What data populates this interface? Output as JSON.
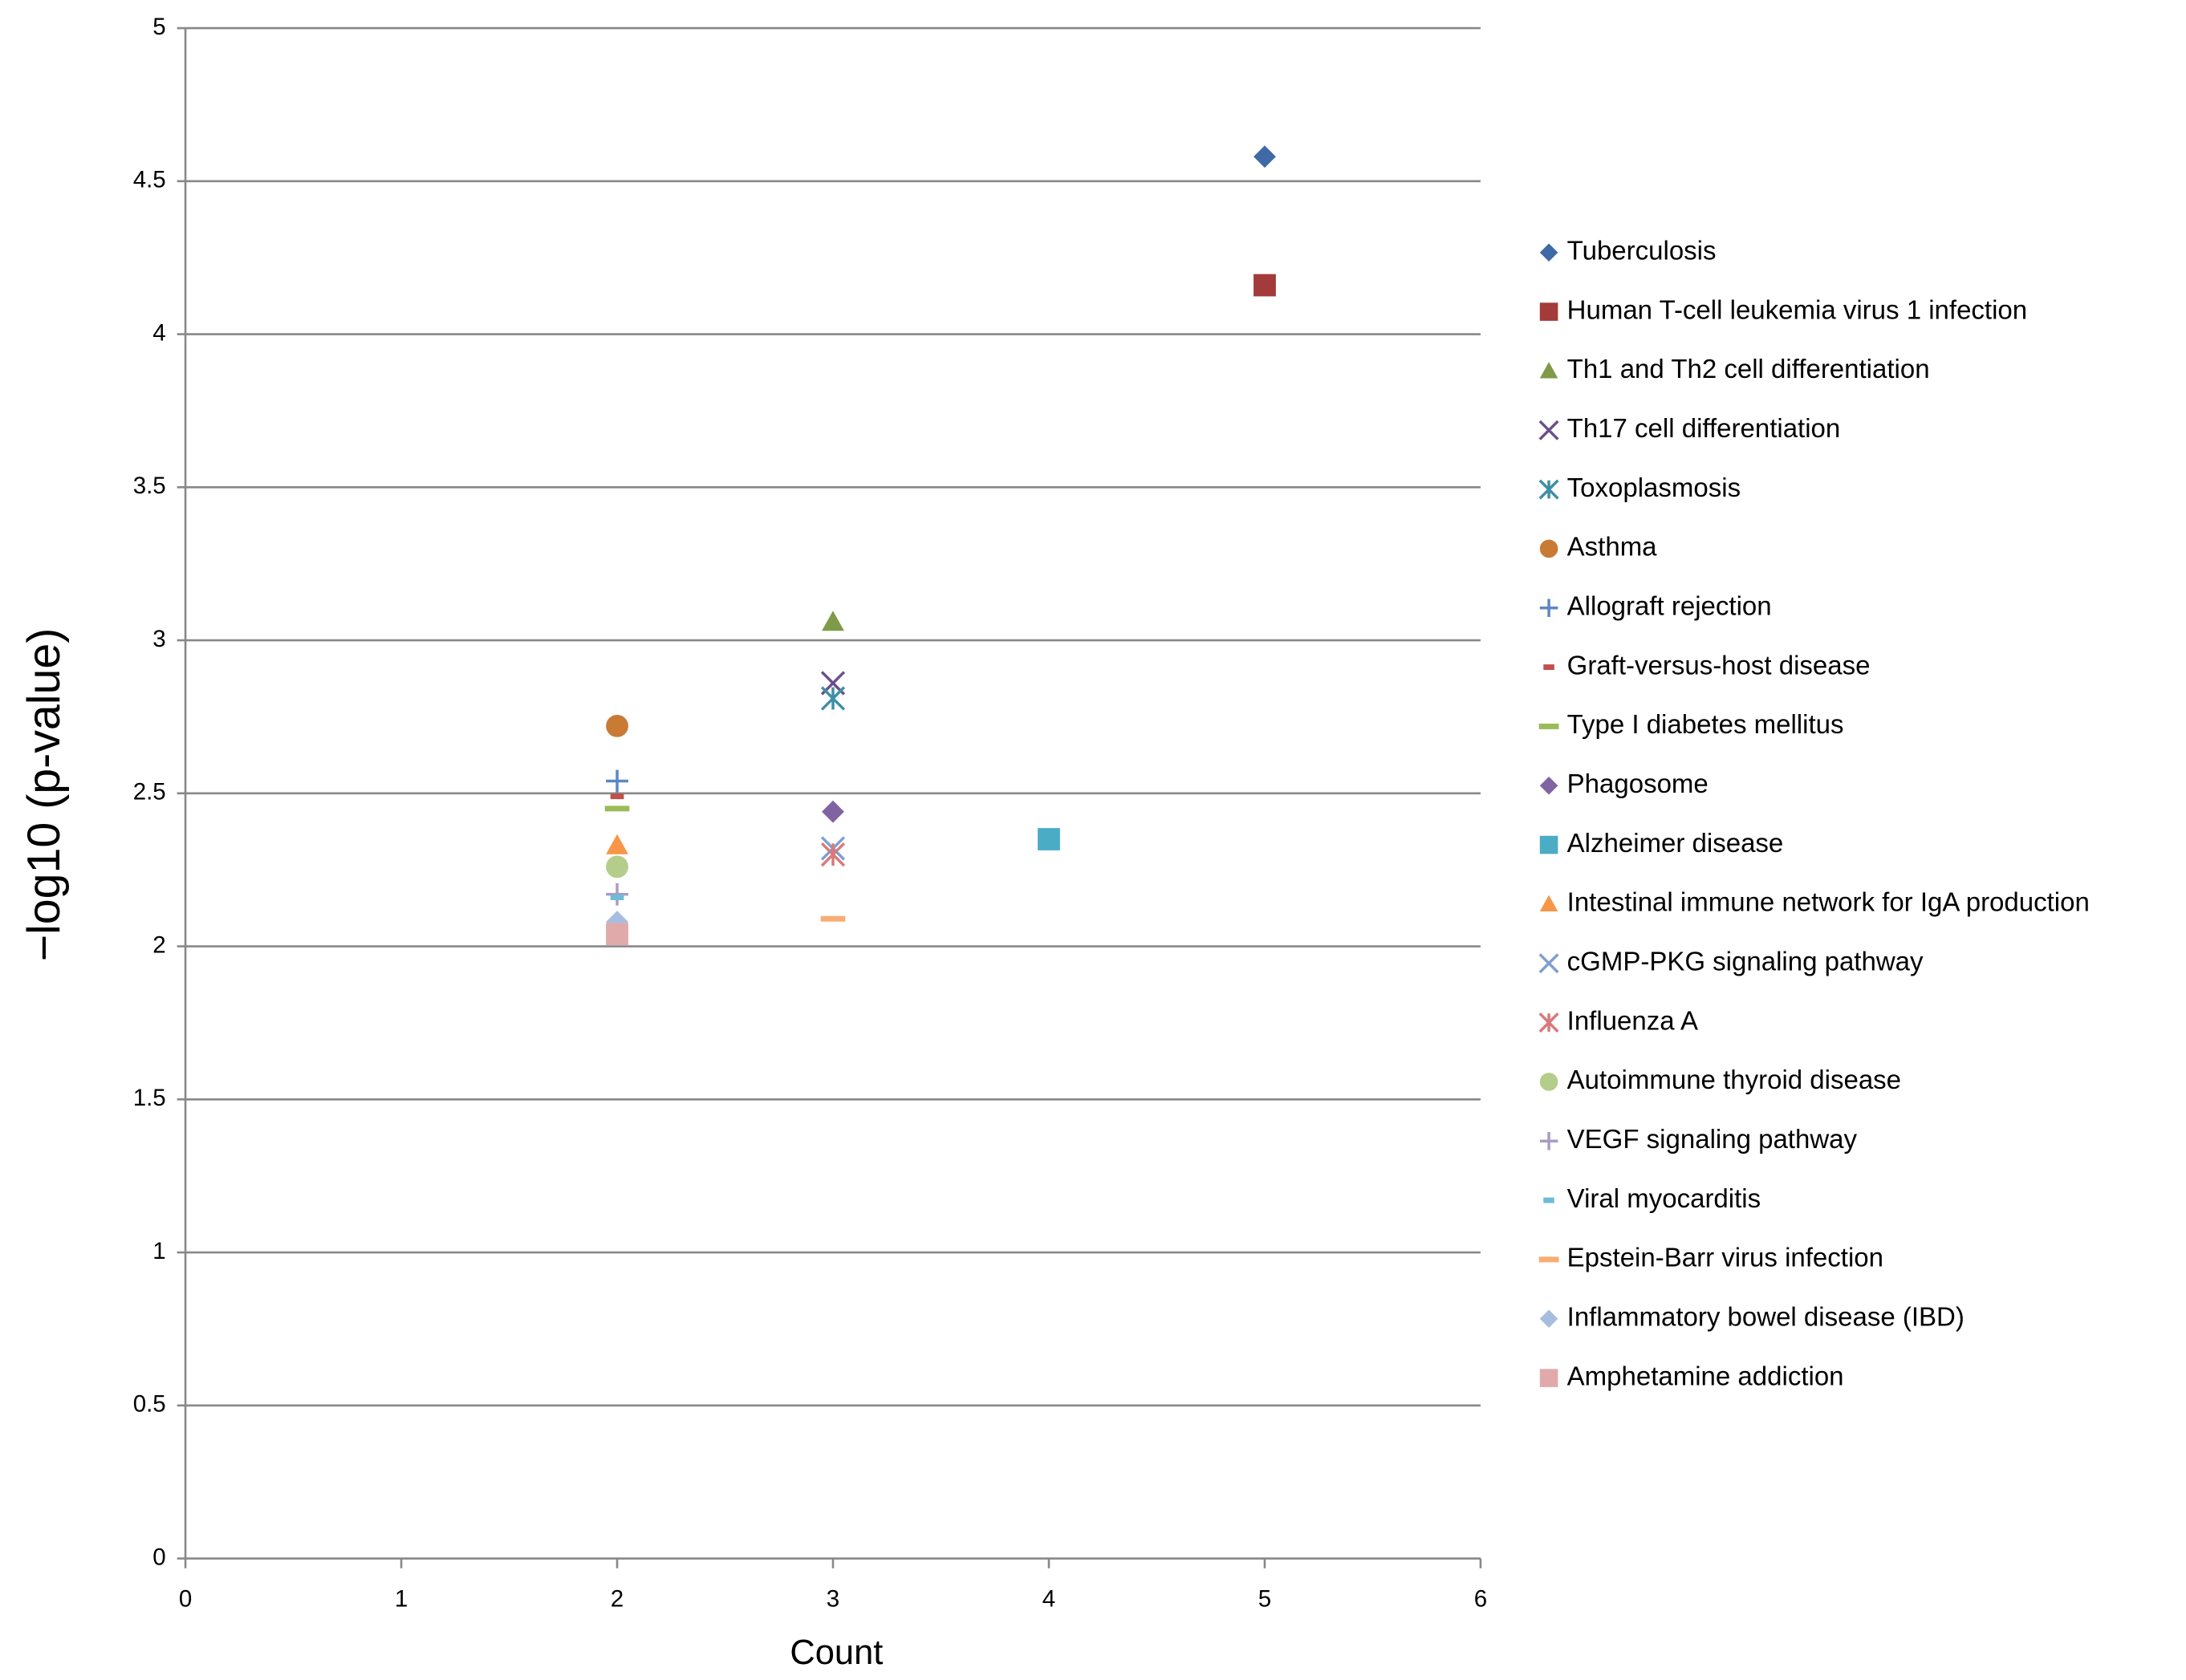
{
  "chart_data": {
    "type": "scatter",
    "xlabel": "Count",
    "ylabel": "−log10 (p-value)",
    "xlim": [
      0,
      6
    ],
    "xticks": [
      0,
      1,
      2,
      3,
      4,
      5,
      6
    ],
    "ylim": [
      0,
      5
    ],
    "yticks": [
      0,
      0.5,
      1,
      1.5,
      2,
      2.5,
      3,
      3.5,
      4,
      4.5,
      5
    ],
    "grid": true,
    "legend": "right",
    "series": [
      {
        "name": "Tuberculosis",
        "color": "#3f6aa6",
        "marker": "diamond",
        "x": [
          5
        ],
        "values": [
          4.58
        ]
      },
      {
        "name": "Human T-cell leukemia virus 1 infection",
        "color": "#a33b3a",
        "marker": "square",
        "x": [
          5
        ],
        "values": [
          4.16
        ]
      },
      {
        "name": "Th1 and Th2 cell differentiation",
        "color": "#7f9a48",
        "marker": "triangle",
        "x": [
          3
        ],
        "values": [
          3.06
        ]
      },
      {
        "name": "Th17 cell differentiation",
        "color": "#6a4f8b",
        "marker": "x",
        "x": [
          3
        ],
        "values": [
          2.86
        ]
      },
      {
        "name": "Toxoplasmosis",
        "color": "#3e8fa6",
        "marker": "asterisk",
        "x": [
          3
        ],
        "values": [
          2.81
        ]
      },
      {
        "name": "Asthma",
        "color": "#c97a35",
        "marker": "circle",
        "x": [
          2
        ],
        "values": [
          2.72
        ]
      },
      {
        "name": "Allograft rejection",
        "color": "#5b87c4",
        "marker": "plus",
        "x": [
          2
        ],
        "values": [
          2.54
        ]
      },
      {
        "name": "Graft-versus-host disease",
        "color": "#c0504d",
        "marker": "dash",
        "x": [
          2
        ],
        "values": [
          2.49
        ]
      },
      {
        "name": "Type I diabetes mellitus",
        "color": "#9bbb59",
        "marker": "longdash",
        "x": [
          2
        ],
        "values": [
          2.45
        ]
      },
      {
        "name": "Phagosome",
        "color": "#8064a2",
        "marker": "diamond",
        "x": [
          3
        ],
        "values": [
          2.44
        ]
      },
      {
        "name": "Alzheimer disease",
        "color": "#4bacc6",
        "marker": "square",
        "x": [
          4
        ],
        "values": [
          2.35
        ]
      },
      {
        "name": "Intestinal immune network for IgA production",
        "color": "#f79646",
        "marker": "triangle",
        "x": [
          2
        ],
        "values": [
          2.33
        ]
      },
      {
        "name": "cGMP-PKG signaling pathway",
        "color": "#7f9fd0",
        "marker": "x",
        "x": [
          3
        ],
        "values": [
          2.32
        ]
      },
      {
        "name": "Influenza A",
        "color": "#d9797a",
        "marker": "asterisk",
        "x": [
          3
        ],
        "values": [
          2.3
        ]
      },
      {
        "name": "Autoimmune thyroid disease",
        "color": "#b4cd8a",
        "marker": "circle",
        "x": [
          2
        ],
        "values": [
          2.26
        ]
      },
      {
        "name": "VEGF signaling pathway",
        "color": "#a99bc3",
        "marker": "plus",
        "x": [
          2
        ],
        "values": [
          2.17
        ]
      },
      {
        "name": "Viral myocarditis",
        "color": "#6fbcd6",
        "marker": "dash",
        "x": [
          2
        ],
        "values": [
          2.16
        ]
      },
      {
        "name": "Epstein-Barr virus infection",
        "color": "#f9ad72",
        "marker": "longdash",
        "x": [
          3
        ],
        "values": [
          2.09
        ]
      },
      {
        "name": "Inflammatory bowel disease (IBD)",
        "color": "#a7bde0",
        "marker": "diamond",
        "x": [
          2
        ],
        "values": [
          2.08
        ]
      },
      {
        "name": "Amphetamine addiction",
        "color": "#e0aaab",
        "marker": "square",
        "x": [
          2
        ],
        "values": [
          2.04
        ]
      }
    ]
  }
}
